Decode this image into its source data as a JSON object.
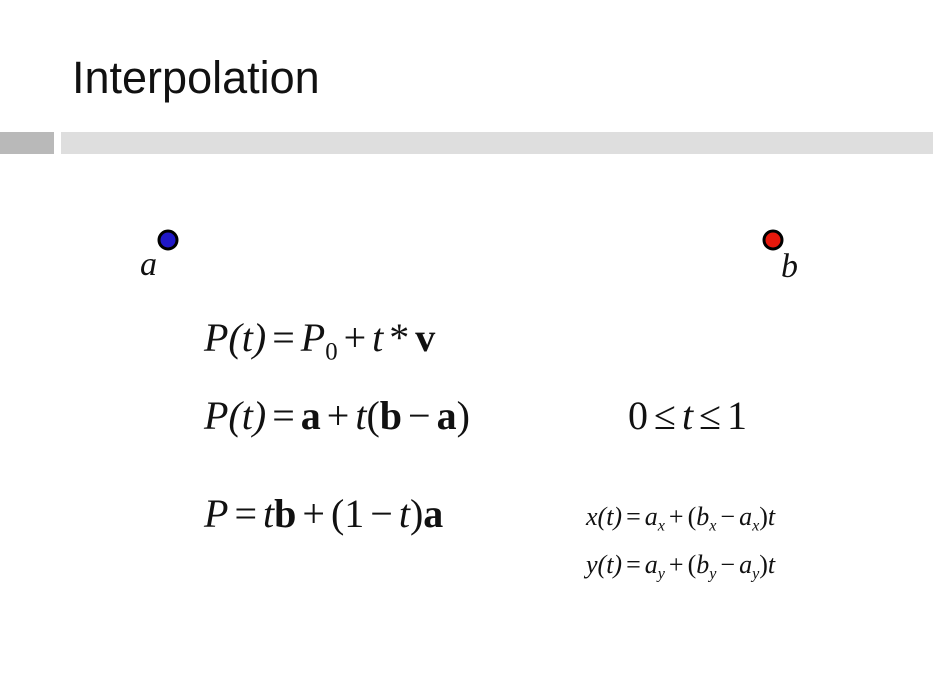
{
  "slide": {
    "title": "Interpolation",
    "segment": {
      "start_label": "a",
      "end_label": "b",
      "start_color": "#2a1ad8",
      "end_color": "#ff2a10",
      "endpoint_start_fill": "#2018c8",
      "endpoint_end_fill": "#e8180c"
    },
    "equations": {
      "e1": {
        "lhs": "P(t)",
        "eq": "=",
        "p": "P",
        "p_sub": "0",
        "plus": "+",
        "t": "t",
        "star": "*",
        "v": "v"
      },
      "e2": {
        "lhs": "P(t)",
        "eq": "=",
        "a": "a",
        "plus": "+",
        "t": "t",
        "paren_open": "(",
        "b": "b",
        "minus": "−",
        "a2": "a",
        "paren_close": ")"
      },
      "range": {
        "zero": "0",
        "le1": "≤",
        "t": "t",
        "le2": "≤",
        "one": "1"
      },
      "e3": {
        "p": "P",
        "eq": "=",
        "t": "t",
        "b": "b",
        "plus": "+",
        "paren": "(1",
        "minus": "−",
        "t2": "t",
        "close": ")",
        "a": "a"
      },
      "ex": {
        "lhs": "x(t)",
        "eq": "=",
        "a": "a",
        "a_sub": "x",
        "plus": "+",
        "open": "(",
        "b": "b",
        "b_sub": "x",
        "minus": "−",
        "a2": "a",
        "a2_sub": "x",
        "close": ")",
        "t": "t"
      },
      "ey": {
        "lhs": "y(t)",
        "eq": "=",
        "a": "a",
        "a_sub": "y",
        "plus": "+",
        "open": "(",
        "b": "b",
        "b_sub": "y",
        "minus": "−",
        "a2": "a",
        "a2_sub": "y",
        "close": ")",
        "t": "t"
      }
    }
  }
}
